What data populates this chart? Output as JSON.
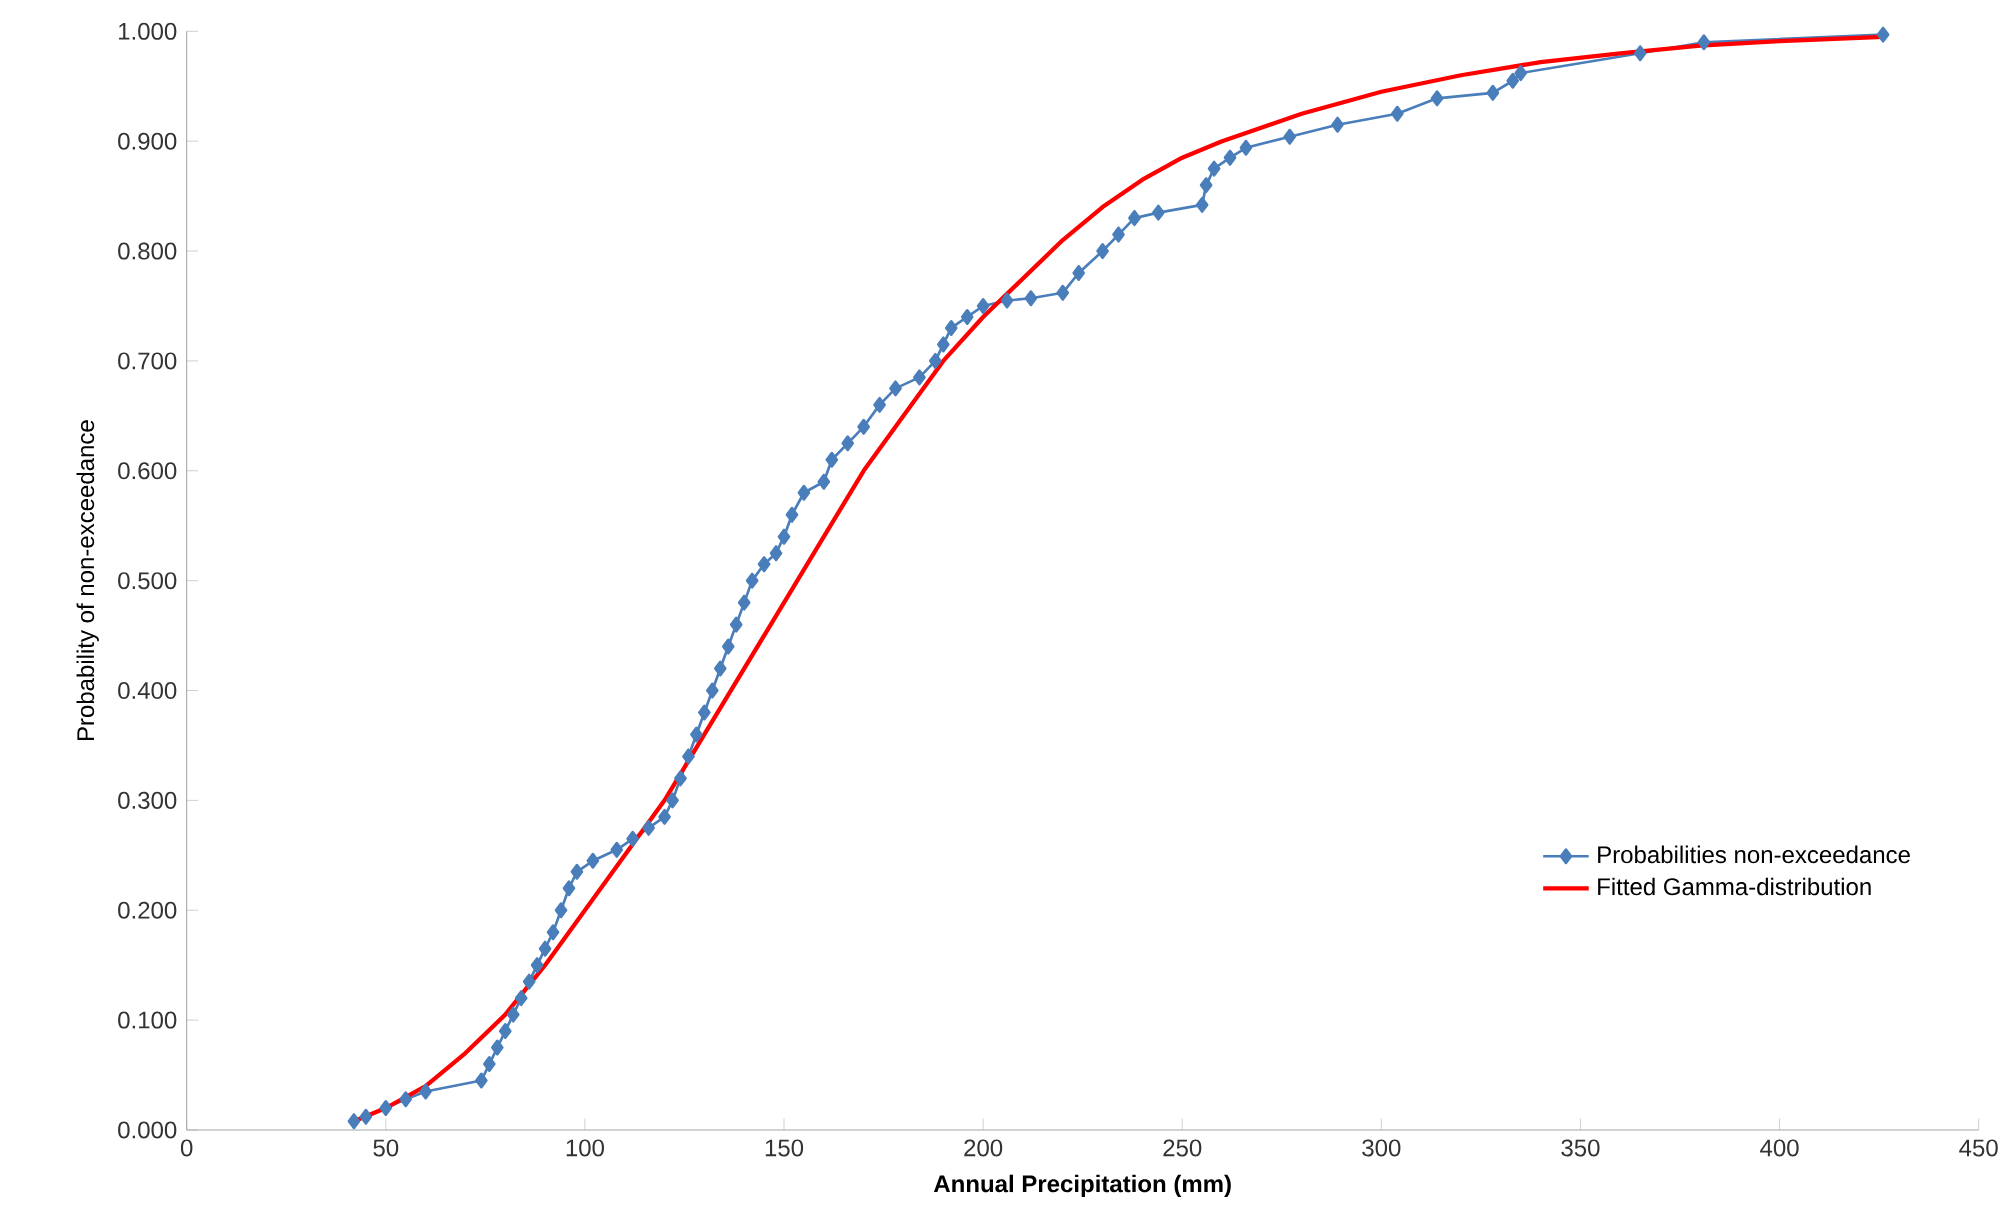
{
  "chart_data": {
    "type": "line",
    "xlabel": "Annual Precipitation (mm)",
    "ylabel": "Probability of non-exceedance",
    "xlim": [
      0,
      450
    ],
    "xticks": [
      0,
      50,
      100,
      150,
      200,
      250,
      300,
      350,
      400,
      450
    ],
    "ylim": [
      0,
      1
    ],
    "yticks": [
      {
        "value": 0,
        "label": "0.000"
      },
      {
        "value": 0.1,
        "label": "0.100"
      },
      {
        "value": 0.2,
        "label": "0.200"
      },
      {
        "value": 0.3,
        "label": "0.300"
      },
      {
        "value": 0.4,
        "label": "0.400"
      },
      {
        "value": 0.5,
        "label": "0.500"
      },
      {
        "value": 0.6,
        "label": "0.600"
      },
      {
        "value": 0.7,
        "label": "0.700"
      },
      {
        "value": 0.8,
        "label": "0.800"
      },
      {
        "value": 0.9,
        "label": "0.900"
      },
      {
        "value": 1,
        "label": "1.000"
      }
    ],
    "grid": false,
    "legend": "bottom right",
    "series": [
      {
        "name": "Probabilities non-exceedance",
        "color": "#4a7ebb",
        "marker": "diamond",
        "x": [
          42,
          45,
          50,
          55,
          60,
          74,
          76,
          78,
          80,
          82,
          84,
          86,
          88,
          90,
          92,
          94,
          96,
          98,
          102,
          108,
          112,
          116,
          120,
          122,
          124,
          126,
          128,
          130,
          132,
          134,
          136,
          138,
          140,
          142,
          145,
          148,
          150,
          152,
          155,
          160,
          162,
          166,
          170,
          174,
          178,
          184,
          188,
          190,
          192,
          196,
          200,
          206,
          212,
          220,
          224,
          230,
          234,
          238,
          244,
          255,
          256,
          258,
          262,
          266,
          277,
          289,
          304,
          314,
          328,
          333,
          335,
          365,
          381,
          426
        ],
        "values": [
          0.008,
          0.012,
          0.02,
          0.028,
          0.035,
          0.045,
          0.06,
          0.075,
          0.09,
          0.105,
          0.12,
          0.135,
          0.15,
          0.165,
          0.18,
          0.2,
          0.22,
          0.235,
          0.245,
          0.255,
          0.265,
          0.275,
          0.285,
          0.3,
          0.32,
          0.34,
          0.36,
          0.38,
          0.4,
          0.42,
          0.44,
          0.46,
          0.48,
          0.5,
          0.515,
          0.525,
          0.54,
          0.56,
          0.58,
          0.59,
          0.61,
          0.625,
          0.64,
          0.66,
          0.675,
          0.685,
          0.7,
          0.715,
          0.73,
          0.74,
          0.75,
          0.755,
          0.757,
          0.762,
          0.78,
          0.8,
          0.815,
          0.83,
          0.835,
          0.842,
          0.86,
          0.875,
          0.885,
          0.894,
          0.904,
          0.915,
          0.925,
          0.939,
          0.944,
          0.955,
          0.962,
          0.98,
          0.99,
          0.997
        ]
      },
      {
        "name": "Fitted Gamma-distribution",
        "color": "#ff0000",
        "marker": "none",
        "x": [
          42,
          50,
          60,
          70,
          80,
          90,
          100,
          110,
          120,
          130,
          140,
          150,
          160,
          170,
          180,
          190,
          200,
          210,
          220,
          230,
          240,
          250,
          260,
          280,
          300,
          320,
          340,
          360,
          380,
          400,
          426
        ],
        "values": [
          0.008,
          0.02,
          0.04,
          0.07,
          0.105,
          0.15,
          0.2,
          0.25,
          0.3,
          0.36,
          0.42,
          0.48,
          0.54,
          0.6,
          0.65,
          0.7,
          0.74,
          0.775,
          0.81,
          0.84,
          0.865,
          0.885,
          0.9,
          0.925,
          0.945,
          0.96,
          0.972,
          0.98,
          0.987,
          0.991,
          0.995
        ]
      }
    ]
  }
}
